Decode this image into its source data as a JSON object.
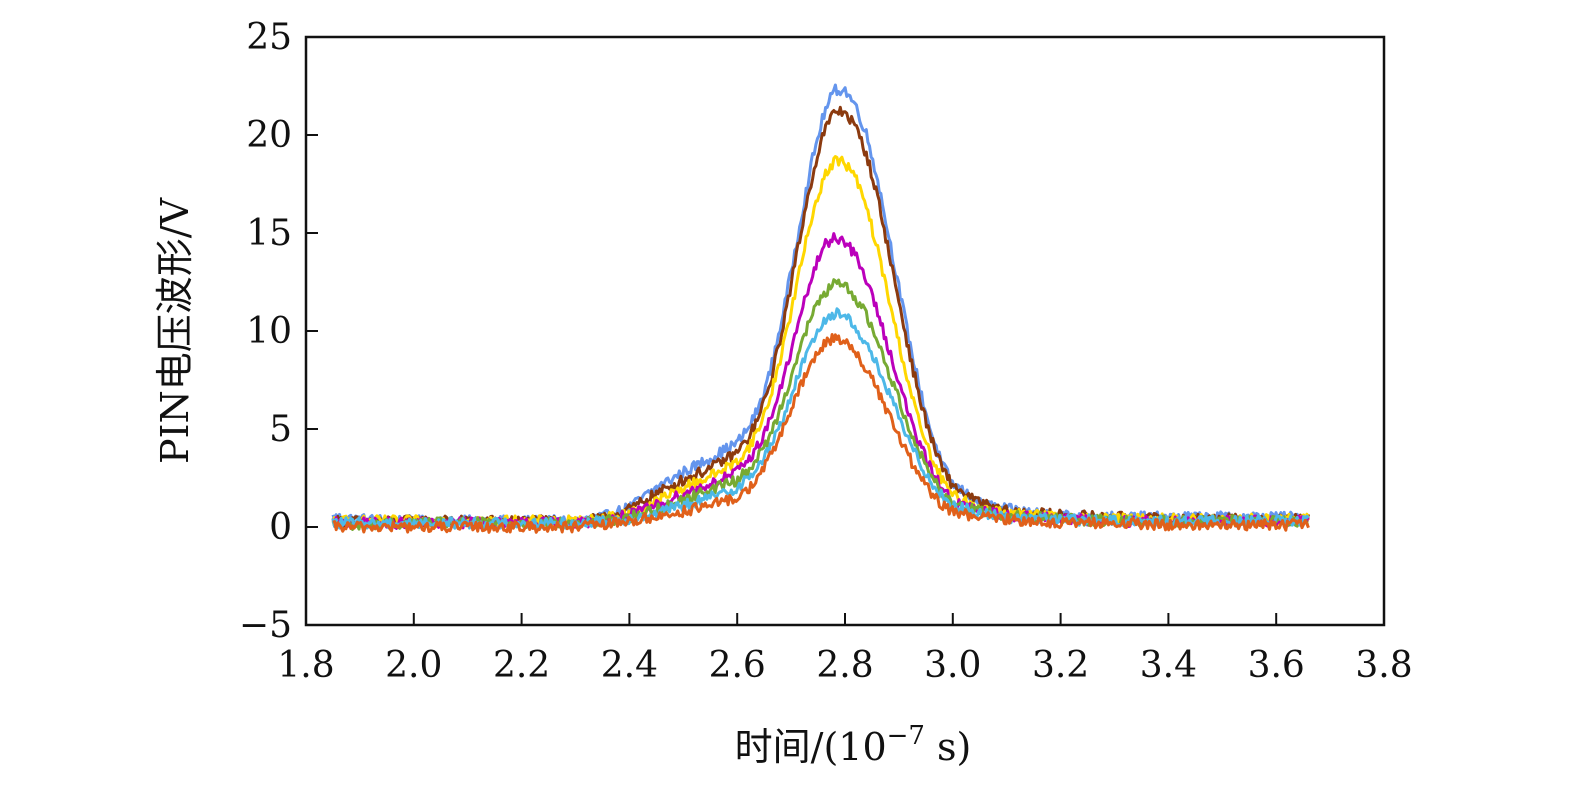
{
  "chart_data": {
    "type": "line",
    "title": "",
    "xlabel": "时间/(10^-7 s)",
    "ylabel": "PIN电压波形/V",
    "xlim": [
      1.8,
      3.8
    ],
    "ylim": [
      -5,
      25
    ],
    "xticks": [
      "1.8",
      "2.0",
      "2.2",
      "2.4",
      "2.6",
      "2.8",
      "3.0",
      "3.2",
      "3.4",
      "3.6",
      "3.8"
    ],
    "yticks": [
      "−5",
      "0",
      "5",
      "10",
      "15",
      "20",
      "25"
    ],
    "grid": false,
    "legend": "none",
    "x": [
      1.85,
      1.9,
      2.0,
      2.1,
      2.2,
      2.3,
      2.35,
      2.4,
      2.45,
      2.5,
      2.55,
      2.6,
      2.62,
      2.64,
      2.66,
      2.68,
      2.7,
      2.72,
      2.74,
      2.76,
      2.78,
      2.8,
      2.82,
      2.84,
      2.86,
      2.88,
      2.9,
      2.92,
      2.94,
      2.96,
      2.98,
      3.0,
      3.05,
      3.1,
      3.2,
      3.3,
      3.4,
      3.5,
      3.6,
      3.66
    ],
    "series": [
      {
        "color": "#6495ED",
        "values": [
          0.5,
          0.4,
          0.3,
          0.3,
          0.3,
          0.3,
          0.5,
          1.0,
          2.0,
          2.8,
          3.5,
          4.3,
          5.0,
          6.1,
          7.8,
          10.2,
          13.0,
          16.0,
          18.8,
          21.0,
          22.3,
          22.3,
          21.5,
          20.0,
          17.8,
          15.0,
          12.2,
          9.4,
          6.9,
          4.8,
          3.2,
          2.2,
          1.2,
          0.9,
          0.6,
          0.5,
          0.5,
          0.5,
          0.5,
          0.5
        ]
      },
      {
        "color": "#8B3A0F",
        "values": [
          0.3,
          0.3,
          0.3,
          0.3,
          0.3,
          0.3,
          0.4,
          0.9,
          1.7,
          2.4,
          3.0,
          3.8,
          4.5,
          5.6,
          7.2,
          9.6,
          12.4,
          15.3,
          18.0,
          20.1,
          21.2,
          21.2,
          20.4,
          19.0,
          16.9,
          14.2,
          11.5,
          8.8,
          6.4,
          4.5,
          3.0,
          2.1,
          1.2,
          0.8,
          0.6,
          0.5,
          0.4,
          0.4,
          0.4,
          0.4
        ]
      },
      {
        "color": "#FFD700",
        "values": [
          0.3,
          0.3,
          0.3,
          0.3,
          0.3,
          0.3,
          0.4,
          0.7,
          1.3,
          2.0,
          2.6,
          3.3,
          4.0,
          5.0,
          6.5,
          8.6,
          11.0,
          13.6,
          16.0,
          17.8,
          18.7,
          18.6,
          17.8,
          16.3,
          14.2,
          11.8,
          9.4,
          7.1,
          5.1,
          3.5,
          2.4,
          1.6,
          1.0,
          0.7,
          0.5,
          0.4,
          0.4,
          0.4,
          0.4,
          0.4
        ]
      },
      {
        "color": "#BB00BB",
        "values": [
          0.2,
          0.2,
          0.2,
          0.2,
          0.2,
          0.2,
          0.3,
          0.6,
          1.1,
          1.7,
          2.2,
          2.8,
          3.4,
          4.2,
          5.4,
          7.0,
          9.0,
          11.0,
          12.9,
          14.3,
          14.8,
          14.6,
          13.8,
          12.6,
          11.0,
          9.2,
          7.4,
          5.6,
          4.1,
          2.9,
          2.0,
          1.3,
          0.8,
          0.6,
          0.4,
          0.3,
          0.3,
          0.3,
          0.3,
          0.3
        ]
      },
      {
        "color": "#77AA33",
        "values": [
          0.1,
          0.1,
          0.2,
          0.2,
          0.2,
          0.2,
          0.3,
          0.5,
          0.9,
          1.4,
          1.9,
          2.4,
          2.9,
          3.6,
          4.6,
          6.0,
          7.7,
          9.4,
          10.9,
          11.9,
          12.4,
          12.3,
          11.7,
          10.8,
          9.5,
          8.0,
          6.5,
          5.0,
          3.7,
          2.6,
          1.8,
          1.2,
          0.8,
          0.6,
          0.4,
          0.3,
          0.3,
          0.3,
          0.3,
          0.3
        ]
      },
      {
        "color": "#4DB8E8",
        "values": [
          0.2,
          0.2,
          0.2,
          0.2,
          0.2,
          0.2,
          0.3,
          0.4,
          0.7,
          1.1,
          1.5,
          2.0,
          2.5,
          3.1,
          4.0,
          5.2,
          6.7,
          8.2,
          9.6,
          10.5,
          10.9,
          10.8,
          10.2,
          9.3,
          8.2,
          6.9,
          5.6,
          4.3,
          3.2,
          2.3,
          1.6,
          1.1,
          0.7,
          0.5,
          0.4,
          0.3,
          0.3,
          0.3,
          0.3,
          0.3
        ]
      },
      {
        "color": "#E0601A",
        "values": [
          0.0,
          0.0,
          0.0,
          0.0,
          0.0,
          0.0,
          0.1,
          0.3,
          0.5,
          0.8,
          1.1,
          1.5,
          1.9,
          2.6,
          3.5,
          4.7,
          6.0,
          7.3,
          8.5,
          9.3,
          9.7,
          9.5,
          8.9,
          8.0,
          7.0,
          5.8,
          4.6,
          3.5,
          2.5,
          1.7,
          1.1,
          0.8,
          0.5,
          0.4,
          0.2,
          0.2,
          0.1,
          0.1,
          0.1,
          0.1
        ]
      }
    ]
  }
}
